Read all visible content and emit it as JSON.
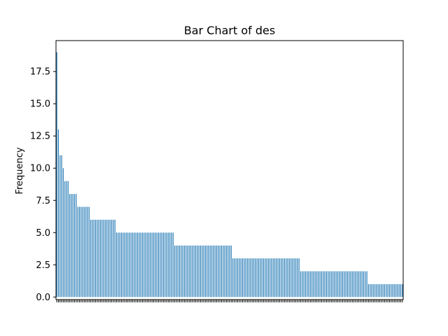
{
  "chart_data": {
    "type": "bar",
    "title": "Bar Chart of des",
    "xlabel": "",
    "ylabel": "Frequency",
    "ylim": [
      -0.2,
      19.9
    ],
    "yticks": [
      "0.0",
      "2.5",
      "5.0",
      "7.5",
      "10.0",
      "12.5",
      "15.0",
      "17.5"
    ],
    "ytick_values": [
      0,
      2.5,
      5,
      7.5,
      10,
      12.5,
      15,
      17.5
    ],
    "bar_color": "#1f77b4",
    "grid": false,
    "legend": "none",
    "category_labels_visible": false,
    "values": [
      19,
      13,
      11,
      11,
      10,
      9,
      9,
      9,
      8,
      8,
      8,
      8,
      8,
      7,
      7,
      7,
      7,
      7,
      7,
      7,
      7,
      6,
      6,
      6,
      6,
      6,
      6,
      6,
      6,
      6,
      6,
      6,
      6,
      6,
      6,
      6,
      6,
      5,
      5,
      5,
      5,
      5,
      5,
      5,
      5,
      5,
      5,
      5,
      5,
      5,
      5,
      5,
      5,
      5,
      5,
      5,
      5,
      5,
      5,
      5,
      5,
      5,
      5,
      5,
      5,
      5,
      5,
      5,
      5,
      5,
      5,
      5,
      5,
      4,
      4,
      4,
      4,
      4,
      4,
      4,
      4,
      4,
      4,
      4,
      4,
      4,
      4,
      4,
      4,
      4,
      4,
      4,
      4,
      4,
      4,
      4,
      4,
      4,
      4,
      4,
      4,
      4,
      4,
      4,
      4,
      4,
      4,
      4,
      4,
      3,
      3,
      3,
      3,
      3,
      3,
      3,
      3,
      3,
      3,
      3,
      3,
      3,
      3,
      3,
      3,
      3,
      3,
      3,
      3,
      3,
      3,
      3,
      3,
      3,
      3,
      3,
      3,
      3,
      3,
      3,
      3,
      3,
      3,
      3,
      3,
      3,
      3,
      3,
      3,
      3,
      3,
      2,
      2,
      2,
      2,
      2,
      2,
      2,
      2,
      2,
      2,
      2,
      2,
      2,
      2,
      2,
      2,
      2,
      2,
      2,
      2,
      2,
      2,
      2,
      2,
      2,
      2,
      2,
      2,
      2,
      2,
      2,
      2,
      2,
      2,
      2,
      2,
      2,
      2,
      2,
      2,
      2,
      2,
      1,
      1,
      1,
      1,
      1,
      1,
      1,
      1,
      1,
      1,
      1,
      1,
      1,
      1,
      1,
      1,
      1,
      1,
      1,
      1,
      1,
      1
    ]
  }
}
